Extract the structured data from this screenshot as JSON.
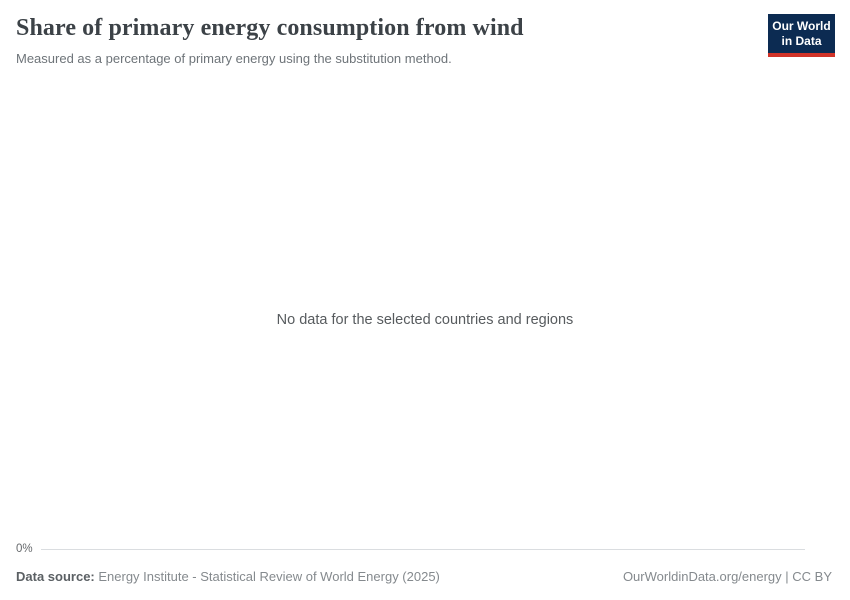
{
  "header": {
    "title": "Share of primary energy consumption from wind",
    "subtitle": "Measured as a percentage of primary energy using the substitution method."
  },
  "logo": {
    "line1": "Our World",
    "line2": "in Data",
    "bg_color": "#0c2b52",
    "accent_color": "#d13328"
  },
  "chart": {
    "no_data_message": "No data for the selected countries and regions",
    "y_axis_tick_zero": "0%"
  },
  "chart_data": {
    "type": "line",
    "title": "Share of primary energy consumption from wind",
    "subtitle": "Measured as a percentage of primary energy using the substitution method.",
    "series": [],
    "x": [],
    "yticks": [
      {
        "label": "0%",
        "value": 0
      }
    ],
    "ylim": [
      0,
      null
    ],
    "grid": false,
    "legend_position": "none",
    "annotations": [
      "No data for the selected countries and regions"
    ]
  },
  "footer": {
    "data_source_label": "Data source:",
    "data_source_value": " Energy Institute - Statistical Review of World Energy (2025)",
    "attribution": "OurWorldinData.org/energy | CC BY"
  }
}
